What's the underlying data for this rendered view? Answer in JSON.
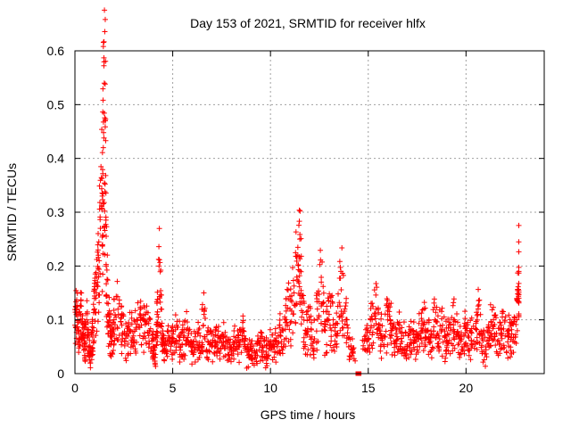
{
  "chart_data": {
    "type": "scatter",
    "title": "Day 153 of 2021, SRMTID for receiver hlfx",
    "xlabel": "GPS time / hours",
    "ylabel": "SRMTID / TECUs",
    "xlim": [
      0,
      24
    ],
    "ylim": [
      0,
      0.6
    ],
    "xticks": [
      0,
      5,
      10,
      15,
      20
    ],
    "yticks": [
      0,
      0.1,
      0.2,
      0.3,
      0.4,
      0.5,
      0.6
    ],
    "xtick_labels": [
      "0",
      "5",
      "10",
      "15",
      "20"
    ],
    "ytick_labels": [
      "0",
      "0.1",
      "0.2",
      "0.3",
      "0.4",
      "0.5",
      "0.6"
    ],
    "grid": true,
    "marker": "+",
    "color": "#ff0000",
    "data_end_hours": 22.7,
    "gap_hours": [
      14.35,
      14.65
    ],
    "series": [
      {
        "name": "SRMTID",
        "x": [
          0.0,
          0.1,
          0.2,
          0.3,
          0.4,
          0.5,
          0.6,
          0.7,
          0.8,
          0.9,
          1.0,
          1.1,
          1.2,
          1.3,
          1.4,
          1.45,
          1.5,
          1.55,
          1.6,
          1.7,
          1.8,
          1.9,
          2.0,
          2.2,
          2.4,
          2.6,
          2.8,
          3.0,
          3.2,
          3.4,
          3.6,
          3.8,
          4.0,
          4.1,
          4.2,
          4.3,
          4.4,
          4.5,
          4.6,
          4.8,
          5.0,
          5.2,
          5.4,
          5.6,
          5.8,
          6.0,
          6.2,
          6.4,
          6.6,
          6.8,
          7.0,
          7.2,
          7.4,
          7.6,
          7.8,
          8.0,
          8.2,
          8.4,
          8.6,
          8.8,
          9.0,
          9.2,
          9.4,
          9.6,
          9.8,
          10.0,
          10.2,
          10.4,
          10.6,
          10.8,
          11.0,
          11.2,
          11.4,
          11.5,
          11.6,
          11.8,
          12.0,
          12.2,
          12.4,
          12.6,
          12.8,
          13.0,
          13.2,
          13.4,
          13.6,
          13.8,
          14.0,
          14.2,
          14.8,
          15.0,
          15.2,
          15.4,
          15.6,
          15.8,
          16.0,
          16.2,
          16.4,
          16.6,
          16.8,
          17.0,
          17.2,
          17.4,
          17.6,
          17.8,
          18.0,
          18.2,
          18.4,
          18.6,
          18.8,
          19.0,
          19.2,
          19.4,
          19.6,
          19.8,
          20.0,
          20.2,
          20.4,
          20.6,
          20.8,
          21.0,
          21.2,
          21.4,
          21.6,
          21.8,
          22.0,
          22.2,
          22.4,
          22.6,
          22.7
        ],
        "y": [
          0.09,
          0.12,
          0.08,
          0.11,
          0.07,
          0.06,
          0.1,
          0.05,
          0.04,
          0.08,
          0.12,
          0.15,
          0.22,
          0.27,
          0.33,
          0.42,
          0.54,
          0.47,
          0.2,
          0.13,
          0.08,
          0.07,
          0.1,
          0.12,
          0.09,
          0.06,
          0.08,
          0.07,
          0.1,
          0.09,
          0.11,
          0.08,
          0.05,
          0.03,
          0.11,
          0.2,
          0.12,
          0.06,
          0.04,
          0.07,
          0.06,
          0.09,
          0.05,
          0.07,
          0.08,
          0.04,
          0.06,
          0.07,
          0.11,
          0.06,
          0.05,
          0.08,
          0.06,
          0.07,
          0.05,
          0.04,
          0.06,
          0.05,
          0.08,
          0.04,
          0.05,
          0.03,
          0.06,
          0.05,
          0.04,
          0.06,
          0.05,
          0.07,
          0.08,
          0.1,
          0.12,
          0.15,
          0.22,
          0.25,
          0.14,
          0.08,
          0.1,
          0.06,
          0.12,
          0.17,
          0.08,
          0.11,
          0.09,
          0.07,
          0.19,
          0.12,
          0.05,
          0.04,
          0.06,
          0.08,
          0.1,
          0.12,
          0.09,
          0.07,
          0.11,
          0.08,
          0.06,
          0.09,
          0.07,
          0.05,
          0.08,
          0.06,
          0.07,
          0.09,
          0.08,
          0.06,
          0.1,
          0.07,
          0.09,
          0.06,
          0.08,
          0.1,
          0.07,
          0.05,
          0.09,
          0.08,
          0.06,
          0.11,
          0.07,
          0.05,
          0.08,
          0.1,
          0.06,
          0.09,
          0.07,
          0.08,
          0.06,
          0.1,
          0.19
        ]
      }
    ]
  }
}
